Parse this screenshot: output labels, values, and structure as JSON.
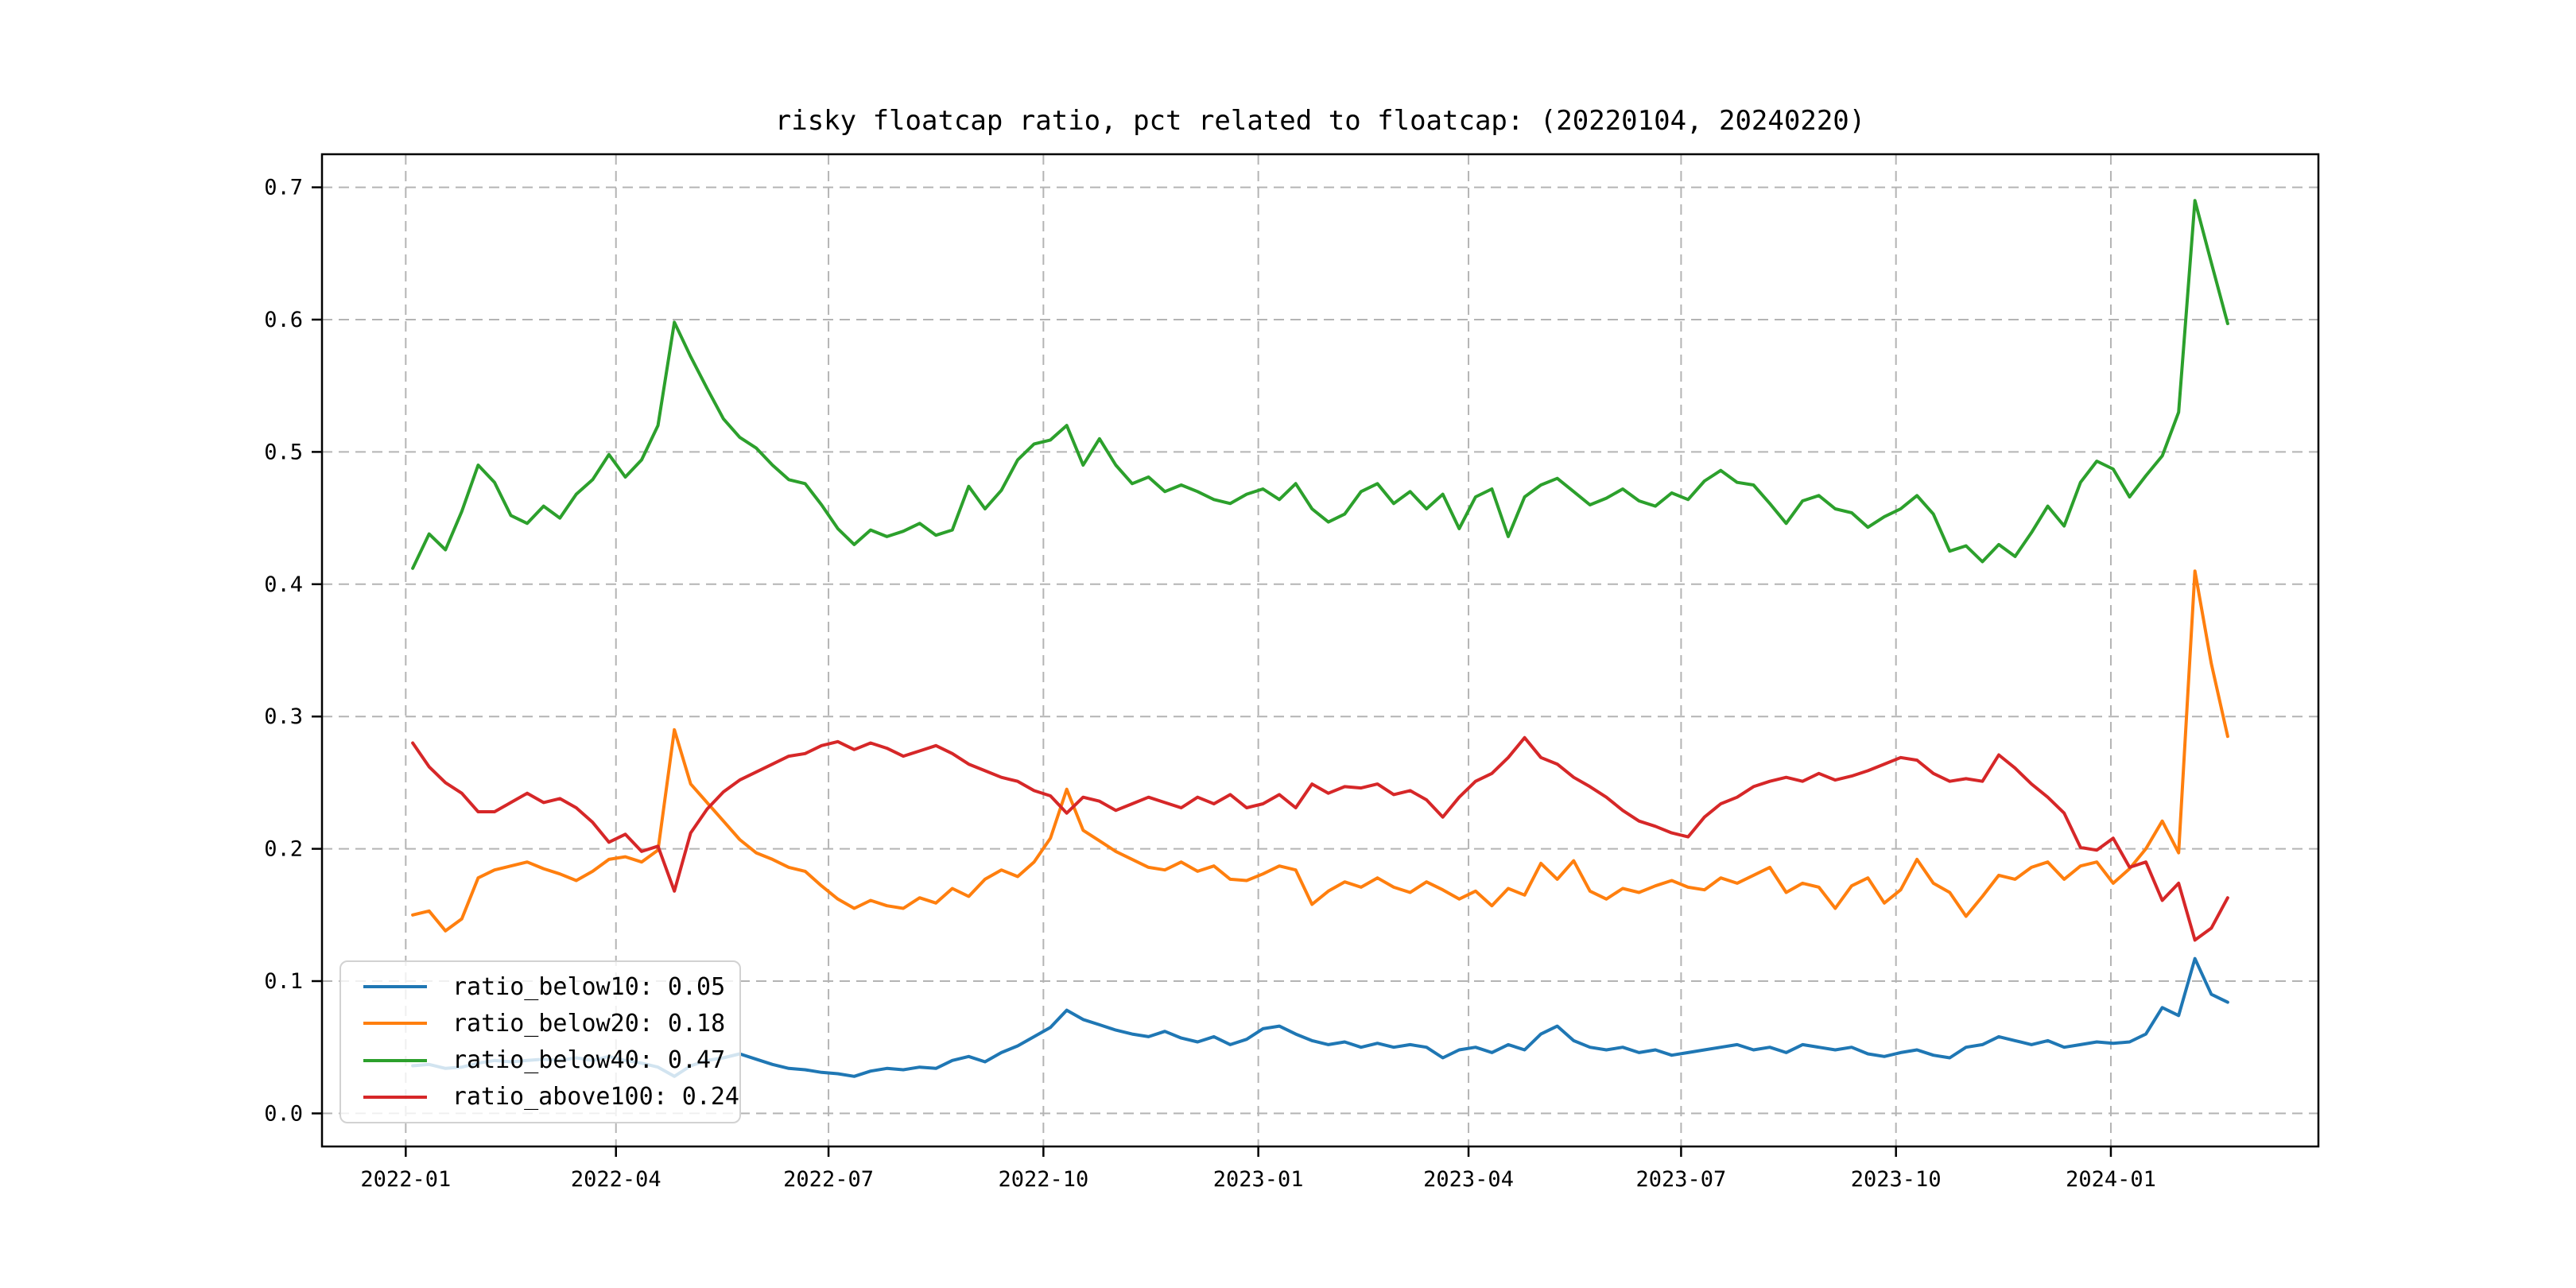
{
  "figure": {
    "background": "#ffffff"
  },
  "chart_data": {
    "type": "line",
    "title": "risky floatcap ratio, pct related to floatcap: (20220104, 20240220)",
    "xlabel": "",
    "ylabel": "",
    "grid": true,
    "legend_position": "lower left",
    "x_unit": "days since 2022-01-01",
    "x_start_date": "2022-01-04",
    "x_end_date": "2024-02-20",
    "sampling": "weekly approximation of daily trading data",
    "ylim": [
      -0.025,
      0.725
    ],
    "xlim_days": [
      -35.85,
      818.85
    ],
    "y_ticks": [
      {
        "value": 0.0,
        "label": "0.0"
      },
      {
        "value": 0.1,
        "label": "0.1"
      },
      {
        "value": 0.2,
        "label": "0.2"
      },
      {
        "value": 0.3,
        "label": "0.3"
      },
      {
        "value": 0.4,
        "label": "0.4"
      },
      {
        "value": 0.5,
        "label": "0.5"
      },
      {
        "value": 0.6,
        "label": "0.6"
      },
      {
        "value": 0.7,
        "label": "0.7"
      }
    ],
    "x_ticks": [
      {
        "day": 0,
        "label": "2022-01"
      },
      {
        "day": 90,
        "label": "2022-04"
      },
      {
        "day": 181,
        "label": "2022-07"
      },
      {
        "day": 273,
        "label": "2022-10"
      },
      {
        "day": 365,
        "label": "2023-01"
      },
      {
        "day": 455,
        "label": "2023-04"
      },
      {
        "day": 546,
        "label": "2023-07"
      },
      {
        "day": 638,
        "label": "2023-10"
      },
      {
        "day": 730,
        "label": "2024-01"
      }
    ],
    "x_days": [
      3,
      10,
      17,
      24,
      31,
      38,
      45,
      52,
      59,
      66,
      73,
      80,
      87,
      94,
      101,
      108,
      115,
      122,
      129,
      136,
      143,
      150,
      157,
      164,
      171,
      178,
      185,
      192,
      199,
      206,
      213,
      220,
      227,
      234,
      241,
      248,
      255,
      262,
      269,
      276,
      283,
      290,
      297,
      304,
      311,
      318,
      325,
      332,
      339,
      346,
      353,
      360,
      367,
      374,
      381,
      388,
      395,
      402,
      409,
      416,
      423,
      430,
      437,
      444,
      451,
      458,
      465,
      472,
      479,
      486,
      493,
      500,
      507,
      514,
      521,
      528,
      535,
      542,
      549,
      556,
      563,
      570,
      577,
      584,
      591,
      598,
      605,
      612,
      619,
      626,
      633,
      640,
      647,
      654,
      661,
      668,
      675,
      682,
      689,
      696,
      703,
      710,
      717,
      724,
      731,
      738,
      745,
      752,
      759,
      766,
      773,
      780
    ],
    "series": [
      {
        "name": "ratio_below10",
        "legend_label": "ratio_below10: 0.05",
        "legend_value": 0.05,
        "color": "#1f77b4",
        "values": [
          0.036,
          0.037,
          0.034,
          0.035,
          0.038,
          0.04,
          0.039,
          0.04,
          0.041,
          0.04,
          0.042,
          0.04,
          0.043,
          0.04,
          0.038,
          0.035,
          0.028,
          0.036,
          0.04,
          0.042,
          0.045,
          0.041,
          0.037,
          0.034,
          0.033,
          0.031,
          0.03,
          0.028,
          0.032,
          0.034,
          0.033,
          0.035,
          0.034,
          0.04,
          0.043,
          0.039,
          0.046,
          0.051,
          0.058,
          0.065,
          0.078,
          0.071,
          0.067,
          0.063,
          0.06,
          0.058,
          0.062,
          0.057,
          0.054,
          0.058,
          0.052,
          0.056,
          0.064,
          0.066,
          0.06,
          0.055,
          0.052,
          0.054,
          0.05,
          0.053,
          0.05,
          0.052,
          0.05,
          0.042,
          0.048,
          0.05,
          0.046,
          0.052,
          0.048,
          0.06,
          0.066,
          0.055,
          0.05,
          0.048,
          0.05,
          0.046,
          0.048,
          0.044,
          0.046,
          0.048,
          0.05,
          0.052,
          0.048,
          0.05,
          0.046,
          0.052,
          0.05,
          0.048,
          0.05,
          0.045,
          0.043,
          0.046,
          0.048,
          0.044,
          0.042,
          0.05,
          0.052,
          0.058,
          0.055,
          0.052,
          0.055,
          0.05,
          0.052,
          0.054,
          0.053,
          0.054,
          0.06,
          0.08,
          0.074,
          0.117,
          0.09,
          0.084
        ]
      },
      {
        "name": "ratio_below20",
        "legend_label": "ratio_below20: 0.18",
        "legend_value": 0.18,
        "color": "#ff7f0e",
        "values": [
          0.15,
          0.153,
          0.138,
          0.147,
          0.178,
          0.184,
          0.187,
          0.19,
          0.185,
          0.181,
          0.176,
          0.183,
          0.192,
          0.194,
          0.19,
          0.199,
          0.29,
          0.249,
          0.235,
          0.221,
          0.207,
          0.197,
          0.192,
          0.186,
          0.183,
          0.172,
          0.162,
          0.155,
          0.161,
          0.157,
          0.155,
          0.163,
          0.159,
          0.17,
          0.164,
          0.177,
          0.184,
          0.179,
          0.19,
          0.208,
          0.245,
          0.214,
          0.206,
          0.198,
          0.192,
          0.186,
          0.184,
          0.19,
          0.183,
          0.187,
          0.177,
          0.176,
          0.181,
          0.187,
          0.184,
          0.158,
          0.168,
          0.175,
          0.171,
          0.178,
          0.171,
          0.167,
          0.175,
          0.169,
          0.162,
          0.168,
          0.157,
          0.17,
          0.165,
          0.189,
          0.177,
          0.191,
          0.168,
          0.162,
          0.17,
          0.167,
          0.172,
          0.176,
          0.171,
          0.169,
          0.178,
          0.174,
          0.18,
          0.186,
          0.167,
          0.174,
          0.171,
          0.155,
          0.172,
          0.178,
          0.159,
          0.169,
          0.192,
          0.174,
          0.167,
          0.149,
          0.164,
          0.18,
          0.177,
          0.186,
          0.19,
          0.177,
          0.187,
          0.19,
          0.174,
          0.185,
          0.2,
          0.221,
          0.197,
          0.41,
          0.34,
          0.285
        ]
      },
      {
        "name": "ratio_below40",
        "legend_label": "ratio_below40: 0.47",
        "legend_value": 0.47,
        "color": "#2ca02c",
        "values": [
          0.412,
          0.438,
          0.426,
          0.455,
          0.49,
          0.477,
          0.452,
          0.446,
          0.459,
          0.45,
          0.468,
          0.479,
          0.498,
          0.481,
          0.494,
          0.52,
          0.598,
          0.572,
          0.548,
          0.525,
          0.511,
          0.503,
          0.49,
          0.479,
          0.476,
          0.46,
          0.442,
          0.43,
          0.441,
          0.436,
          0.44,
          0.446,
          0.437,
          0.441,
          0.474,
          0.457,
          0.471,
          0.494,
          0.506,
          0.509,
          0.52,
          0.49,
          0.51,
          0.49,
          0.476,
          0.481,
          0.47,
          0.475,
          0.47,
          0.464,
          0.461,
          0.468,
          0.472,
          0.464,
          0.476,
          0.457,
          0.447,
          0.453,
          0.47,
          0.476,
          0.461,
          0.47,
          0.457,
          0.468,
          0.442,
          0.466,
          0.472,
          0.436,
          0.466,
          0.475,
          0.48,
          0.47,
          0.46,
          0.465,
          0.472,
          0.463,
          0.459,
          0.469,
          0.464,
          0.478,
          0.486,
          0.477,
          0.475,
          0.461,
          0.446,
          0.463,
          0.467,
          0.457,
          0.454,
          0.443,
          0.451,
          0.457,
          0.467,
          0.453,
          0.425,
          0.429,
          0.417,
          0.43,
          0.421,
          0.439,
          0.459,
          0.444,
          0.477,
          0.493,
          0.487,
          0.466,
          0.482,
          0.497,
          0.53,
          0.69,
          0.643,
          0.597
        ]
      },
      {
        "name": "ratio_above100",
        "legend_label": "ratio_above100: 0.24",
        "legend_value": 0.24,
        "color": "#d62728",
        "values": [
          0.28,
          0.262,
          0.25,
          0.242,
          0.228,
          0.228,
          0.235,
          0.242,
          0.235,
          0.238,
          0.231,
          0.22,
          0.205,
          0.211,
          0.198,
          0.202,
          0.168,
          0.212,
          0.23,
          0.243,
          0.252,
          0.258,
          0.264,
          0.27,
          0.272,
          0.278,
          0.281,
          0.275,
          0.28,
          0.276,
          0.27,
          0.274,
          0.278,
          0.272,
          0.264,
          0.259,
          0.254,
          0.251,
          0.244,
          0.24,
          0.227,
          0.239,
          0.236,
          0.229,
          0.234,
          0.239,
          0.235,
          0.231,
          0.239,
          0.234,
          0.241,
          0.231,
          0.234,
          0.241,
          0.231,
          0.249,
          0.242,
          0.247,
          0.246,
          0.249,
          0.241,
          0.244,
          0.237,
          0.224,
          0.239,
          0.251,
          0.257,
          0.269,
          0.284,
          0.269,
          0.264,
          0.254,
          0.247,
          0.239,
          0.229,
          0.221,
          0.217,
          0.212,
          0.209,
          0.224,
          0.234,
          0.239,
          0.247,
          0.251,
          0.254,
          0.251,
          0.257,
          0.252,
          0.255,
          0.259,
          0.264,
          0.269,
          0.267,
          0.257,
          0.251,
          0.253,
          0.251,
          0.271,
          0.261,
          0.249,
          0.239,
          0.227,
          0.201,
          0.199,
          0.208,
          0.186,
          0.19,
          0.161,
          0.174,
          0.131,
          0.14,
          0.163
        ]
      }
    ]
  }
}
